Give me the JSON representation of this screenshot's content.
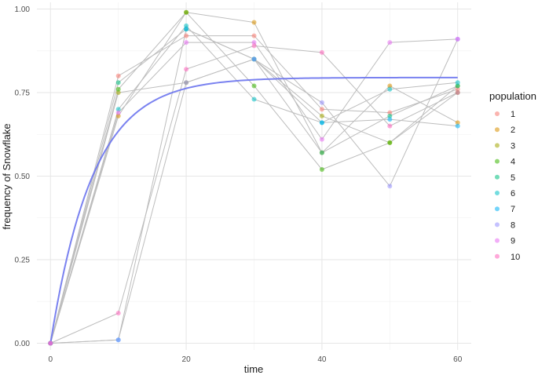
{
  "chart_data": {
    "type": "scatter",
    "xlabel": "time",
    "ylabel": "frequency of Snowflake",
    "xlim": [
      -2,
      62
    ],
    "ylim": [
      -0.02,
      1.02
    ],
    "x_ticks": [
      0,
      20,
      40,
      60
    ],
    "x_tick_labels": [
      "0",
      "20",
      "40",
      "60"
    ],
    "y_ticks": [
      0,
      0.25,
      0.5,
      0.75,
      1.0
    ],
    "y_tick_labels": [
      "0.00",
      "0.25",
      "0.50",
      "0.75",
      "1.00"
    ],
    "grid": true,
    "legend_title": "population",
    "legend_position": "right",
    "line_color": "#bdbdbd",
    "fit_color": "#6b74ee",
    "x": [
      0,
      10,
      20,
      30,
      40,
      50,
      60
    ],
    "series": [
      {
        "name": "1",
        "color": "#F8766D",
        "values": [
          0.0,
          0.8,
          0.92,
          0.92,
          0.7,
          0.69,
          0.76
        ]
      },
      {
        "name": "2",
        "color": "#D89000",
        "values": [
          0.0,
          0.68,
          0.99,
          0.96,
          0.57,
          0.77,
          0.66
        ]
      },
      {
        "name": "3",
        "color": "#A3A500",
        "values": [
          0.0,
          0.75,
          0.78,
          0.85,
          0.68,
          0.6,
          0.77
        ]
      },
      {
        "name": "4",
        "color": "#39B600",
        "values": [
          0.0,
          0.76,
          0.99,
          0.77,
          0.52,
          0.6,
          0.75
        ]
      },
      {
        "name": "5",
        "color": "#00BF7D",
        "values": [
          0.0,
          0.78,
          0.94,
          0.85,
          0.57,
          0.68,
          0.77
        ]
      },
      {
        "name": "6",
        "color": "#00BFC4",
        "values": [
          0.0,
          0.7,
          0.95,
          0.73,
          0.66,
          0.76,
          0.78
        ]
      },
      {
        "name": "7",
        "color": "#00B0F6",
        "values": [
          0.0,
          0.01,
          0.94,
          0.85,
          0.66,
          0.67,
          0.65
        ]
      },
      {
        "name": "8",
        "color": "#9590FF",
        "values": [
          0.0,
          0.01,
          0.78,
          0.85,
          0.72,
          0.47,
          0.91
        ]
      },
      {
        "name": "9",
        "color": "#E76BF3",
        "values": [
          0.0,
          0.69,
          0.9,
          0.9,
          0.61,
          0.9,
          0.91
        ]
      },
      {
        "name": "10",
        "color": "#FF62BC",
        "values": [
          0.0,
          0.09,
          0.82,
          0.89,
          0.87,
          0.65,
          0.75
        ]
      }
    ],
    "fit_curve": {
      "type": "saturating-exponential",
      "asymptote": 0.795,
      "rate": 0.16,
      "x_range": [
        0,
        60
      ]
    }
  }
}
